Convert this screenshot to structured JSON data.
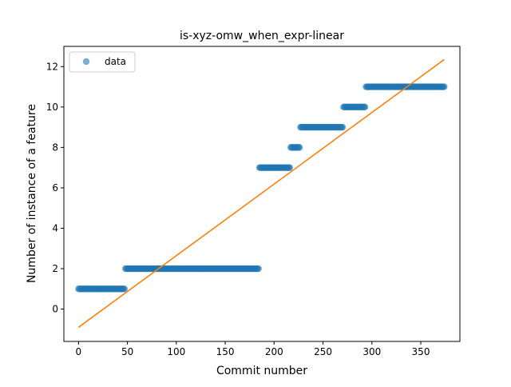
{
  "chart_data": {
    "type": "scatter",
    "title": "is-xyz-omw_when_expr-linear",
    "xlabel": "Commit number",
    "ylabel": "Number of instance of a feature",
    "xlim": [
      -15,
      390
    ],
    "ylim": [
      -1.6,
      13
    ],
    "xticks": [
      0,
      50,
      100,
      150,
      200,
      250,
      300,
      350
    ],
    "yticks": [
      0,
      2,
      4,
      6,
      8,
      10,
      12
    ],
    "legend": {
      "entries": [
        "data"
      ],
      "placement": "top-left"
    },
    "colors": {
      "points": "#1f77b4",
      "fit": "#ff7f0e"
    },
    "series": [
      {
        "name": "data",
        "kind": "points",
        "steps": [
          {
            "x_start": 0,
            "x_end": 47,
            "y": 1
          },
          {
            "x_start": 48,
            "x_end": 184,
            "y": 2
          },
          {
            "x_start": 185,
            "x_end": 216,
            "y": 7
          },
          {
            "x_start": 217,
            "x_end": 226,
            "y": 8
          },
          {
            "x_start": 227,
            "x_end": 270,
            "y": 9
          },
          {
            "x_start": 271,
            "x_end": 293,
            "y": 10
          },
          {
            "x_start": 294,
            "x_end": 374,
            "y": 11
          }
        ]
      },
      {
        "kind": "line",
        "x": [
          0,
          374
        ],
        "y": [
          -0.9,
          12.35
        ]
      }
    ]
  }
}
